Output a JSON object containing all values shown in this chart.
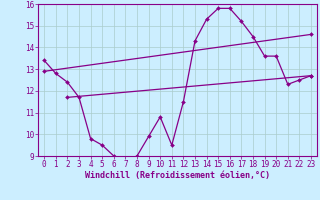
{
  "xlabel": "Windchill (Refroidissement éolien,°C)",
  "background_color": "#cceeff",
  "line_color": "#880088",
  "xlim": [
    -0.5,
    23.5
  ],
  "ylim": [
    9,
    16
  ],
  "yticks": [
    9,
    10,
    11,
    12,
    13,
    14,
    15,
    16
  ],
  "xticks": [
    0,
    1,
    2,
    3,
    4,
    5,
    6,
    7,
    8,
    9,
    10,
    11,
    12,
    13,
    14,
    15,
    16,
    17,
    18,
    19,
    20,
    21,
    22,
    23
  ],
  "xtick_labels": [
    "0",
    "1",
    "2",
    "3",
    "4",
    "5",
    "6",
    "7",
    "8",
    "9",
    "10",
    "11",
    "12",
    "13",
    "14",
    "15",
    "16",
    "17",
    "18",
    "19",
    "20",
    "21",
    "22",
    "23"
  ],
  "series1_x": [
    0,
    1,
    2,
    3,
    4,
    5,
    6,
    7,
    8,
    9,
    10,
    11,
    12,
    13,
    14,
    15,
    16,
    17,
    18,
    19,
    20,
    21,
    22,
    23
  ],
  "series1_y": [
    13.4,
    12.8,
    12.4,
    11.7,
    9.8,
    9.5,
    9.0,
    8.8,
    9.0,
    9.9,
    10.8,
    9.5,
    11.5,
    14.3,
    15.3,
    15.8,
    15.8,
    15.2,
    14.5,
    13.6,
    13.6,
    12.3,
    12.5,
    12.7
  ],
  "series2_x": [
    2,
    23
  ],
  "series2_y": [
    11.7,
    12.7
  ],
  "series3_x": [
    0,
    23
  ],
  "series3_y": [
    12.9,
    14.6
  ],
  "grid_color": "#aacccc",
  "font_color": "#880088",
  "marker_size": 2.0,
  "line_width": 0.9,
  "tick_fontsize": 5.5,
  "xlabel_fontsize": 6.0
}
